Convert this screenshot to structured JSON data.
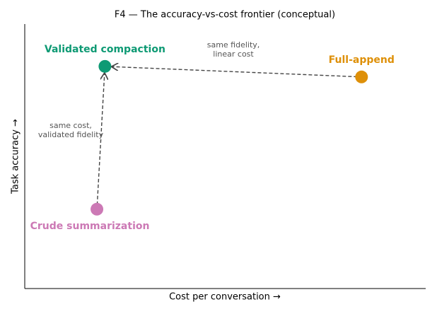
{
  "chart_data": {
    "type": "scatter",
    "title": "F4 — The accuracy-vs-cost frontier (conceptual)",
    "x_label": "Cost per conversation →",
    "y_label": "Task accuracy →",
    "xlim": [
      0,
      1
    ],
    "ylim": [
      0,
      1
    ],
    "series": [
      {
        "name": "Validated compaction",
        "color": "#0e9a74",
        "x": [
          0.2
        ],
        "values": [
          0.84
        ]
      },
      {
        "name": "Full-append",
        "color": "#de9009",
        "x": [
          0.84
        ],
        "values": [
          0.8
        ]
      },
      {
        "name": "Crude summarization",
        "color": "#cc79b5",
        "x": [
          0.18
        ],
        "values": [
          0.3
        ]
      }
    ],
    "annotations": [
      {
        "lines": [
          "same fidelity,",
          "linear cost"
        ]
      },
      {
        "lines": [
          "same cost,",
          "validated fidelity"
        ]
      }
    ]
  }
}
